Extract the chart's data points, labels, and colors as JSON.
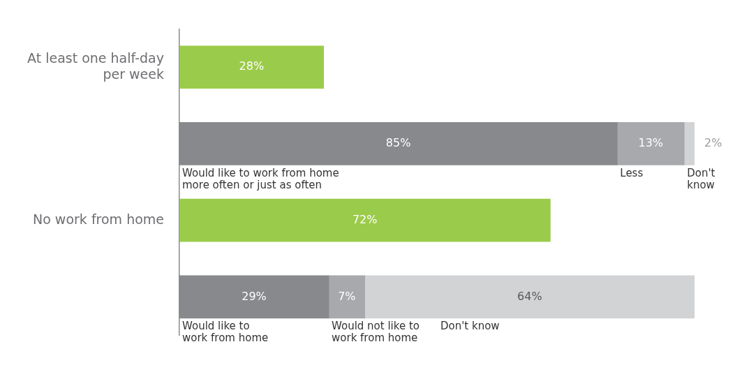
{
  "chart_data": {
    "type": "bar",
    "orientation": "horizontal",
    "stacked": true,
    "xlim": [
      0,
      100
    ],
    "tick_labels": "y",
    "categories": [
      "At least one half-day per week",
      null,
      "No work from home",
      null
    ],
    "series": [
      {
        "color": "#9bcb4a",
        "values": [
          28,
          null,
          72,
          null
        ],
        "value_labels": [
          "28%",
          null,
          "72%",
          null
        ]
      },
      {
        "color": "#88898c",
        "values": [
          null,
          85,
          null,
          29
        ],
        "value_labels": [
          null,
          "85%",
          null,
          "29%"
        ]
      },
      {
        "color": "#a7a9ac",
        "values": [
          null,
          13,
          null,
          7
        ],
        "value_labels": [
          null,
          "13%",
          null,
          "7%"
        ]
      },
      {
        "color": "#d1d3d4",
        "values": [
          null,
          2,
          null,
          64
        ],
        "value_labels": [
          null,
          "2%",
          null,
          "64%"
        ]
      }
    ],
    "annotations": [
      "Would like to work from home\nmore often or just as often",
      "Less",
      "Don't\nknow",
      "Would like to\nwork from home",
      "Would not like to\nwork from home",
      "Don't know"
    ]
  }
}
